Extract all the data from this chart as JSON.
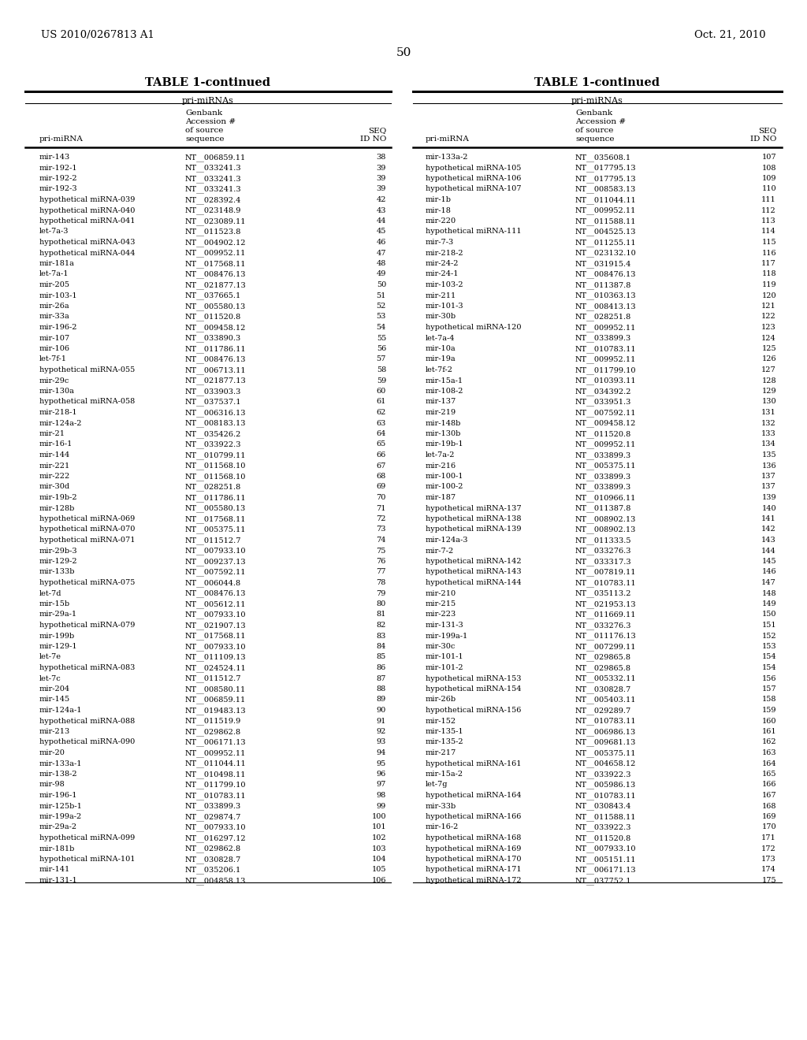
{
  "header_left": "US 2010/0267813 A1",
  "header_right": "Oct. 21, 2010",
  "page_number": "50",
  "table_title": "TABLE 1-continued",
  "section_header": "pri-miRNAs",
  "col1_header": "pri-miRNA",
  "col2_header_line1": "Genbank",
  "col2_header_line2": "Accession #",
  "col2_header_line3": "of source",
  "col2_header_line4": "sequence",
  "col3_header_line1": "SEQ",
  "col3_header_line2": "ID NO",
  "left_data": [
    [
      "mir-143",
      "NT__006859.11",
      "38"
    ],
    [
      "mir-192-1",
      "NT__033241.3",
      "39"
    ],
    [
      "mir-192-2",
      "NT__033241.3",
      "39"
    ],
    [
      "mir-192-3",
      "NT__033241.3",
      "39"
    ],
    [
      "hypothetical miRNA-039",
      "NT__028392.4",
      "42"
    ],
    [
      "hypothetical miRNA-040",
      "NT__023148.9",
      "43"
    ],
    [
      "hypothetical miRNA-041",
      "NT__023089.11",
      "44"
    ],
    [
      "let-7a-3",
      "NT__011523.8",
      "45"
    ],
    [
      "hypothetical miRNA-043",
      "NT__004902.12",
      "46"
    ],
    [
      "hypothetical miRNA-044",
      "NT__009952.11",
      "47"
    ],
    [
      "mir-181a",
      "NT__017568.11",
      "48"
    ],
    [
      "let-7a-1",
      "NT__008476.13",
      "49"
    ],
    [
      "mir-205",
      "NT__021877.13",
      "50"
    ],
    [
      "mir-103-1",
      "NT__037665.1",
      "51"
    ],
    [
      "mir-26a",
      "NT__005580.13",
      "52"
    ],
    [
      "mir-33a",
      "NT__011520.8",
      "53"
    ],
    [
      "mir-196-2",
      "NT__009458.12",
      "54"
    ],
    [
      "mir-107",
      "NT__033890.3",
      "55"
    ],
    [
      "mir-106",
      "NT__011786.11",
      "56"
    ],
    [
      "let-7f-1",
      "NT__008476.13",
      "57"
    ],
    [
      "hypothetical miRNA-055",
      "NT__006713.11",
      "58"
    ],
    [
      "mir-29c",
      "NT__021877.13",
      "59"
    ],
    [
      "mir-130a",
      "NT__033903.3",
      "60"
    ],
    [
      "hypothetical miRNA-058",
      "NT__037537.1",
      "61"
    ],
    [
      "mir-218-1",
      "NT__006316.13",
      "62"
    ],
    [
      "mir-124a-2",
      "NT__008183.13",
      "63"
    ],
    [
      "mir-21",
      "NT__035426.2",
      "64"
    ],
    [
      "mir-16-1",
      "NT__033922.3",
      "65"
    ],
    [
      "mir-144",
      "NT__010799.11",
      "66"
    ],
    [
      "mir-221",
      "NT__011568.10",
      "67"
    ],
    [
      "mir-222",
      "NT__011568.10",
      "68"
    ],
    [
      "mir-30d",
      "NT__028251.8",
      "69"
    ],
    [
      "mir-19b-2",
      "NT__011786.11",
      "70"
    ],
    [
      "mir-128b",
      "NT__005580.13",
      "71"
    ],
    [
      "hypothetical miRNA-069",
      "NT__017568.11",
      "72"
    ],
    [
      "hypothetical miRNA-070",
      "NT__005375.11",
      "73"
    ],
    [
      "hypothetical miRNA-071",
      "NT__011512.7",
      "74"
    ],
    [
      "mir-29b-3",
      "NT__007933.10",
      "75"
    ],
    [
      "mir-129-2",
      "NT__009237.13",
      "76"
    ],
    [
      "mir-133b",
      "NT__007592.11",
      "77"
    ],
    [
      "hypothetical miRNA-075",
      "NT__006044.8",
      "78"
    ],
    [
      "let-7d",
      "NT__008476.13",
      "79"
    ],
    [
      "mir-15b",
      "NT__005612.11",
      "80"
    ],
    [
      "mir-29a-1",
      "NT__007933.10",
      "81"
    ],
    [
      "hypothetical miRNA-079",
      "NT__021907.13",
      "82"
    ],
    [
      "mir-199b",
      "NT__017568.11",
      "83"
    ],
    [
      "mir-129-1",
      "NT__007933.10",
      "84"
    ],
    [
      "let-7e",
      "NT__011109.13",
      "85"
    ],
    [
      "hypothetical miRNA-083",
      "NT__024524.11",
      "86"
    ],
    [
      "let-7c",
      "NT__011512.7",
      "87"
    ],
    [
      "mir-204",
      "NT__008580.11",
      "88"
    ],
    [
      "mir-145",
      "NT__006859.11",
      "89"
    ],
    [
      "mir-124a-1",
      "NT__019483.13",
      "90"
    ],
    [
      "hypothetical miRNA-088",
      "NT__011519.9",
      "91"
    ],
    [
      "mir-213",
      "NT__029862.8",
      "92"
    ],
    [
      "hypothetical miRNA-090",
      "NT__006171.13",
      "93"
    ],
    [
      "mir-20",
      "NT__009952.11",
      "94"
    ],
    [
      "mir-133a-1",
      "NT__011044.11",
      "95"
    ],
    [
      "mir-138-2",
      "NT__010498.11",
      "96"
    ],
    [
      "mir-98",
      "NT__011799.10",
      "97"
    ],
    [
      "mir-196-1",
      "NT__010783.11",
      "98"
    ],
    [
      "mir-125b-1",
      "NT__033899.3",
      "99"
    ],
    [
      "mir-199a-2",
      "NT__029874.7",
      "100"
    ],
    [
      "mir-29a-2",
      "NT__007933.10",
      "101"
    ],
    [
      "hypothetical miRNA-099",
      "NT__016297.12",
      "102"
    ],
    [
      "mir-181b",
      "NT__029862.8",
      "103"
    ],
    [
      "hypothetical miRNA-101",
      "NT__030828.7",
      "104"
    ],
    [
      "mir-141",
      "NT__035206.1",
      "105"
    ],
    [
      "mir-131-1",
      "NT__004858.13",
      "106"
    ]
  ],
  "right_data": [
    [
      "mir-133a-2",
      "NT__035608.1",
      "107"
    ],
    [
      "hypothetical miRNA-105",
      "NT__017795.13",
      "108"
    ],
    [
      "hypothetical miRNA-106",
      "NT__017795.13",
      "109"
    ],
    [
      "hypothetical miRNA-107",
      "NT__008583.13",
      "110"
    ],
    [
      "mir-1b",
      "NT__011044.11",
      "111"
    ],
    [
      "mir-18",
      "NT__009952.11",
      "112"
    ],
    [
      "mir-220",
      "NT__011588.11",
      "113"
    ],
    [
      "hypothetical miRNA-111",
      "NT__004525.13",
      "114"
    ],
    [
      "mir-7-3",
      "NT__011255.11",
      "115"
    ],
    [
      "mir-218-2",
      "NT__023132.10",
      "116"
    ],
    [
      "mir-24-2",
      "NT__031915.4",
      "117"
    ],
    [
      "mir-24-1",
      "NT__008476.13",
      "118"
    ],
    [
      "mir-103-2",
      "NT__011387.8",
      "119"
    ],
    [
      "mir-211",
      "NT__010363.13",
      "120"
    ],
    [
      "mir-101-3",
      "NT__008413.13",
      "121"
    ],
    [
      "mir-30b",
      "NT__028251.8",
      "122"
    ],
    [
      "hypothetical miRNA-120",
      "NT__009952.11",
      "123"
    ],
    [
      "let-7a-4",
      "NT__033899.3",
      "124"
    ],
    [
      "mir-10a",
      "NT__010783.11",
      "125"
    ],
    [
      "mir-19a",
      "NT__009952.11",
      "126"
    ],
    [
      "let-7f-2",
      "NT__011799.10",
      "127"
    ],
    [
      "mir-15a-1",
      "NT__010393.11",
      "128"
    ],
    [
      "mir-108-2",
      "NT__034392.2",
      "129"
    ],
    [
      "mir-137",
      "NT__033951.3",
      "130"
    ],
    [
      "mir-219",
      "NT__007592.11",
      "131"
    ],
    [
      "mir-148b",
      "NT__009458.12",
      "132"
    ],
    [
      "mir-130b",
      "NT__011520.8",
      "133"
    ],
    [
      "mir-19b-1",
      "NT__009952.11",
      "134"
    ],
    [
      "let-7a-2",
      "NT__033899.3",
      "135"
    ],
    [
      "mir-216",
      "NT__005375.11",
      "136"
    ],
    [
      "mir-100-1",
      "NT__033899.3",
      "137"
    ],
    [
      "mir-100-2",
      "NT__033899.3",
      "137"
    ],
    [
      "mir-187",
      "NT__010966.11",
      "139"
    ],
    [
      "hypothetical miRNA-137",
      "NT__011387.8",
      "140"
    ],
    [
      "hypothetical miRNA-138",
      "NT__008902.13",
      "141"
    ],
    [
      "hypothetical miRNA-139",
      "NT__008902.13",
      "142"
    ],
    [
      "mir-124a-3",
      "NT__011333.5",
      "143"
    ],
    [
      "mir-7-2",
      "NT__033276.3",
      "144"
    ],
    [
      "hypothetical miRNA-142",
      "NT__033317.3",
      "145"
    ],
    [
      "hypothetical miRNA-143",
      "NT__007819.11",
      "146"
    ],
    [
      "hypothetical miRNA-144",
      "NT__010783.11",
      "147"
    ],
    [
      "mir-210",
      "NT__035113.2",
      "148"
    ],
    [
      "mir-215",
      "NT__021953.13",
      "149"
    ],
    [
      "mir-223",
      "NT__011669.11",
      "150"
    ],
    [
      "mir-131-3",
      "NT__033276.3",
      "151"
    ],
    [
      "mir-199a-1",
      "NT__011176.13",
      "152"
    ],
    [
      "mir-30c",
      "NT__007299.11",
      "153"
    ],
    [
      "mir-101-1",
      "NT__029865.8",
      "154"
    ],
    [
      "mir-101-2",
      "NT__029865.8",
      "154"
    ],
    [
      "hypothetical miRNA-153",
      "NT__005332.11",
      "156"
    ],
    [
      "hypothetical miRNA-154",
      "NT__030828.7",
      "157"
    ],
    [
      "mir-26b",
      "NT__005403.11",
      "158"
    ],
    [
      "hypothetical miRNA-156",
      "NT__029289.7",
      "159"
    ],
    [
      "mir-152",
      "NT__010783.11",
      "160"
    ],
    [
      "mir-135-1",
      "NT__006986.13",
      "161"
    ],
    [
      "mir-135-2",
      "NT__009681.13",
      "162"
    ],
    [
      "mir-217",
      "NT__005375.11",
      "163"
    ],
    [
      "hypothetical miRNA-161",
      "NT__004658.12",
      "164"
    ],
    [
      "mir-15a-2",
      "NT__033922.3",
      "165"
    ],
    [
      "let-7g",
      "NT__005986.13",
      "166"
    ],
    [
      "hypothetical miRNA-164",
      "NT__010783.11",
      "167"
    ],
    [
      "mir-33b",
      "NT__030843.4",
      "168"
    ],
    [
      "hypothetical miRNA-166",
      "NT__011588.11",
      "169"
    ],
    [
      "mir-16-2",
      "NT__033922.3",
      "170"
    ],
    [
      "hypothetical miRNA-168",
      "NT__011520.8",
      "171"
    ],
    [
      "hypothetical miRNA-169",
      "NT__007933.10",
      "172"
    ],
    [
      "hypothetical miRNA-170",
      "NT__005151.11",
      "173"
    ],
    [
      "hypothetical miRNA-171",
      "NT__006171.13",
      "174"
    ],
    [
      "hypothetical miRNA-172",
      "NT__037752.1",
      "175"
    ]
  ],
  "bg_color": "#ffffff",
  "text_color": "#000000",
  "font_size": 7.0,
  "title_font_size": 10.5,
  "section_font_size": 8.0,
  "col_header_font_size": 7.5
}
